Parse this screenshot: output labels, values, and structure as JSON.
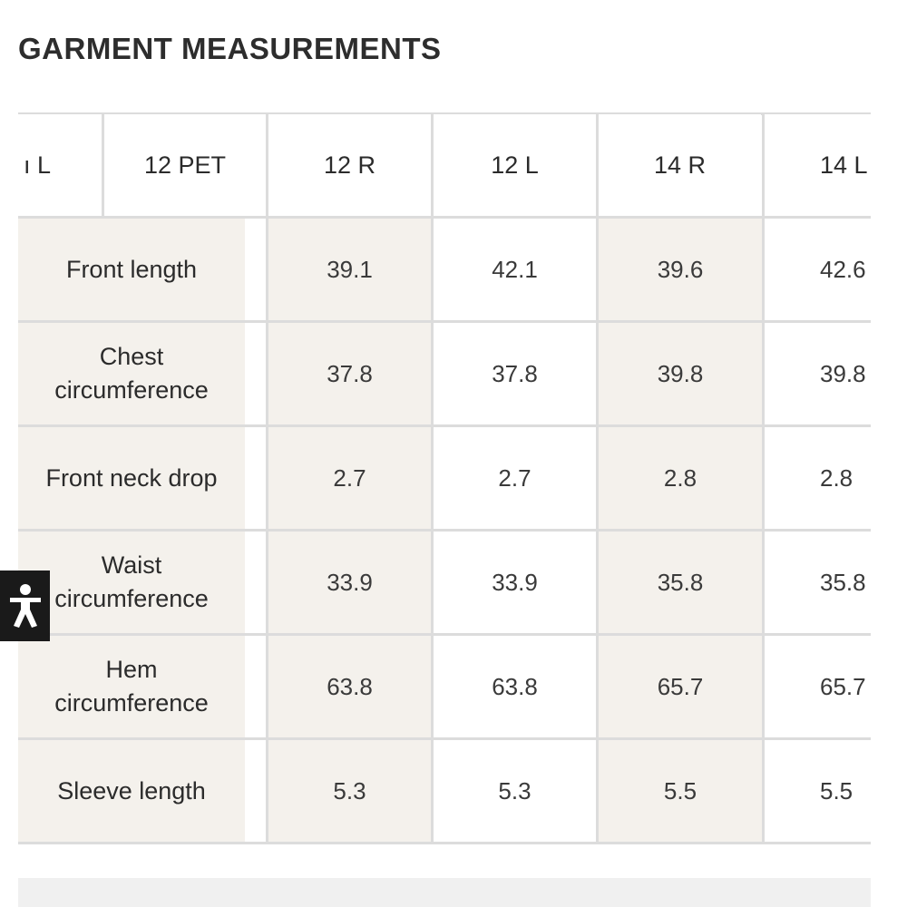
{
  "title": "GARMENT MEASUREMENTS",
  "columns": [
    "ı L",
    "12 PET",
    "12 R",
    "12 L",
    "14 R",
    "14 L"
  ],
  "rows": [
    {
      "label": "Front length",
      "values": [
        "39.1",
        "42.1",
        "39.6",
        "42.6"
      ]
    },
    {
      "label": "Chest\ncircumference",
      "values": [
        "37.8",
        "37.8",
        "39.8",
        "39.8"
      ]
    },
    {
      "label": "Front neck drop",
      "values": [
        "2.7",
        "2.7",
        "2.8",
        "2.8"
      ]
    },
    {
      "label": "Waist\ncircumference",
      "values": [
        "33.9",
        "33.9",
        "35.8",
        "35.8"
      ]
    },
    {
      "label": "Hem\ncircumference",
      "values": [
        "63.8",
        "63.8",
        "65.7",
        "65.7"
      ]
    },
    {
      "label": "Sleeve length",
      "values": [
        "5.3",
        "5.3",
        "5.5",
        "5.5"
      ]
    }
  ],
  "accessibility": {
    "icon": "accessibility-icon"
  },
  "colors": {
    "shade": "#f4f1ec",
    "grid": "#dcdcdc",
    "text": "#2b2b2b",
    "a11y_bg": "#1a1a1a"
  }
}
